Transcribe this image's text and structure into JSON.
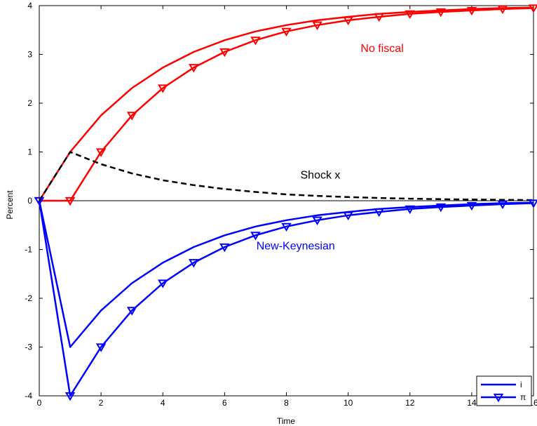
{
  "chart_data": {
    "type": "line",
    "xlabel": "Time",
    "ylabel": "Percent",
    "xlim": [
      0,
      16
    ],
    "ylim": [
      -4,
      4
    ],
    "x_ticks": [
      0,
      2,
      4,
      6,
      8,
      10,
      12,
      14,
      16
    ],
    "y_ticks": [
      -4,
      -3,
      -2,
      -1,
      0,
      1,
      2,
      3,
      4
    ],
    "x_tick_labels": [
      "0",
      "2",
      "4",
      "6",
      "8",
      "10",
      "12",
      "14",
      "16"
    ],
    "y_tick_labels": [
      "-4",
      "-3",
      "-2",
      "-1",
      "0",
      "1",
      "2",
      "3",
      "4"
    ],
    "grid": false,
    "legend_position": "bottom-right",
    "x": [
      0,
      1,
      2,
      3,
      4,
      5,
      6,
      7,
      8,
      9,
      10,
      11,
      12,
      13,
      14,
      15,
      16
    ],
    "series": [
      {
        "key": "nf_i",
        "name": "i",
        "group": "No fiscal",
        "color": "#ff0000",
        "marker": "none",
        "values": [
          0,
          1.0,
          1.75,
          2.31,
          2.73,
          3.05,
          3.29,
          3.47,
          3.6,
          3.7,
          3.77,
          3.83,
          3.87,
          3.9,
          3.93,
          3.95,
          3.96
        ]
      },
      {
        "key": "nf_pi",
        "name": "π",
        "group": "No fiscal",
        "color": "#ff0000",
        "marker": "triangle-down",
        "values": [
          0,
          0,
          1.0,
          1.75,
          2.31,
          2.73,
          3.05,
          3.29,
          3.47,
          3.6,
          3.7,
          3.77,
          3.83,
          3.87,
          3.9,
          3.93,
          3.95
        ]
      },
      {
        "key": "shock",
        "name": "Shock x",
        "color": "#000000",
        "marker": "none",
        "dash": true,
        "values": [
          0,
          1.0,
          0.75,
          0.56,
          0.42,
          0.32,
          0.24,
          0.18,
          0.13,
          0.1,
          0.075,
          0.056,
          0.042,
          0.032,
          0.024,
          0.018,
          0.013
        ]
      },
      {
        "key": "nk_i",
        "name": "i",
        "group": "New-Keynesian",
        "color": "#0000ff",
        "marker": "none",
        "values": [
          0,
          -3.0,
          -2.25,
          -1.69,
          -1.27,
          -0.95,
          -0.71,
          -0.53,
          -0.4,
          -0.3,
          -0.23,
          -0.17,
          -0.13,
          -0.1,
          -0.07,
          -0.05,
          -0.04
        ]
      },
      {
        "key": "nk_pi",
        "name": "π",
        "group": "New-Keynesian",
        "color": "#0000ff",
        "marker": "triangle-down",
        "values": [
          0,
          -4.0,
          -3.0,
          -2.25,
          -1.69,
          -1.27,
          -0.95,
          -0.71,
          -0.53,
          -0.4,
          -0.3,
          -0.23,
          -0.17,
          -0.13,
          -0.1,
          -0.07,
          -0.05
        ]
      }
    ],
    "annotations": [
      {
        "text": "No fiscal",
        "x": 11.1,
        "y": 3.05,
        "color": "#ff0000"
      },
      {
        "text": "Shock x",
        "x": 9.1,
        "y": 0.45,
        "color": "#000000"
      },
      {
        "text": "New-Keynesian",
        "x": 8.3,
        "y": -1.0,
        "color": "#0000ff"
      }
    ],
    "legend": [
      {
        "label": "i",
        "color": "#0000ff",
        "marker": "none"
      },
      {
        "label": "π",
        "color": "#0000ff",
        "marker": "triangle-down"
      }
    ]
  }
}
